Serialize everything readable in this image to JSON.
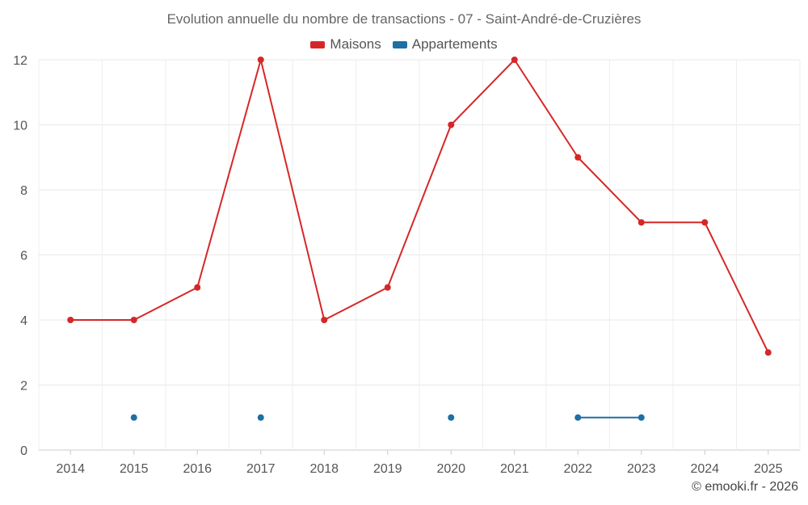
{
  "chart_data": {
    "type": "line",
    "title": "Evolution annuelle du nombre de transactions - 07 - Saint-André-de-Cruzières",
    "xlabel": "",
    "ylabel": "",
    "categories": [
      "2014",
      "2015",
      "2016",
      "2017",
      "2018",
      "2019",
      "2020",
      "2021",
      "2022",
      "2023",
      "2024",
      "2025"
    ],
    "ylim": [
      0,
      12
    ],
    "yticks": [
      0,
      2,
      4,
      6,
      8,
      10,
      12
    ],
    "grid": true,
    "legend_position": "top-center",
    "series": [
      {
        "name": "Maisons",
        "color": "#d62728",
        "values": [
          4,
          4,
          5,
          12,
          4,
          5,
          10,
          12,
          9,
          7,
          7,
          3
        ]
      },
      {
        "name": "Appartements",
        "color": "#1f6fa5",
        "values": [
          null,
          1,
          null,
          1,
          null,
          null,
          1,
          null,
          1,
          1,
          null,
          null
        ]
      }
    ]
  },
  "footer": {
    "copyright": "© emooki.fr - 2026"
  }
}
